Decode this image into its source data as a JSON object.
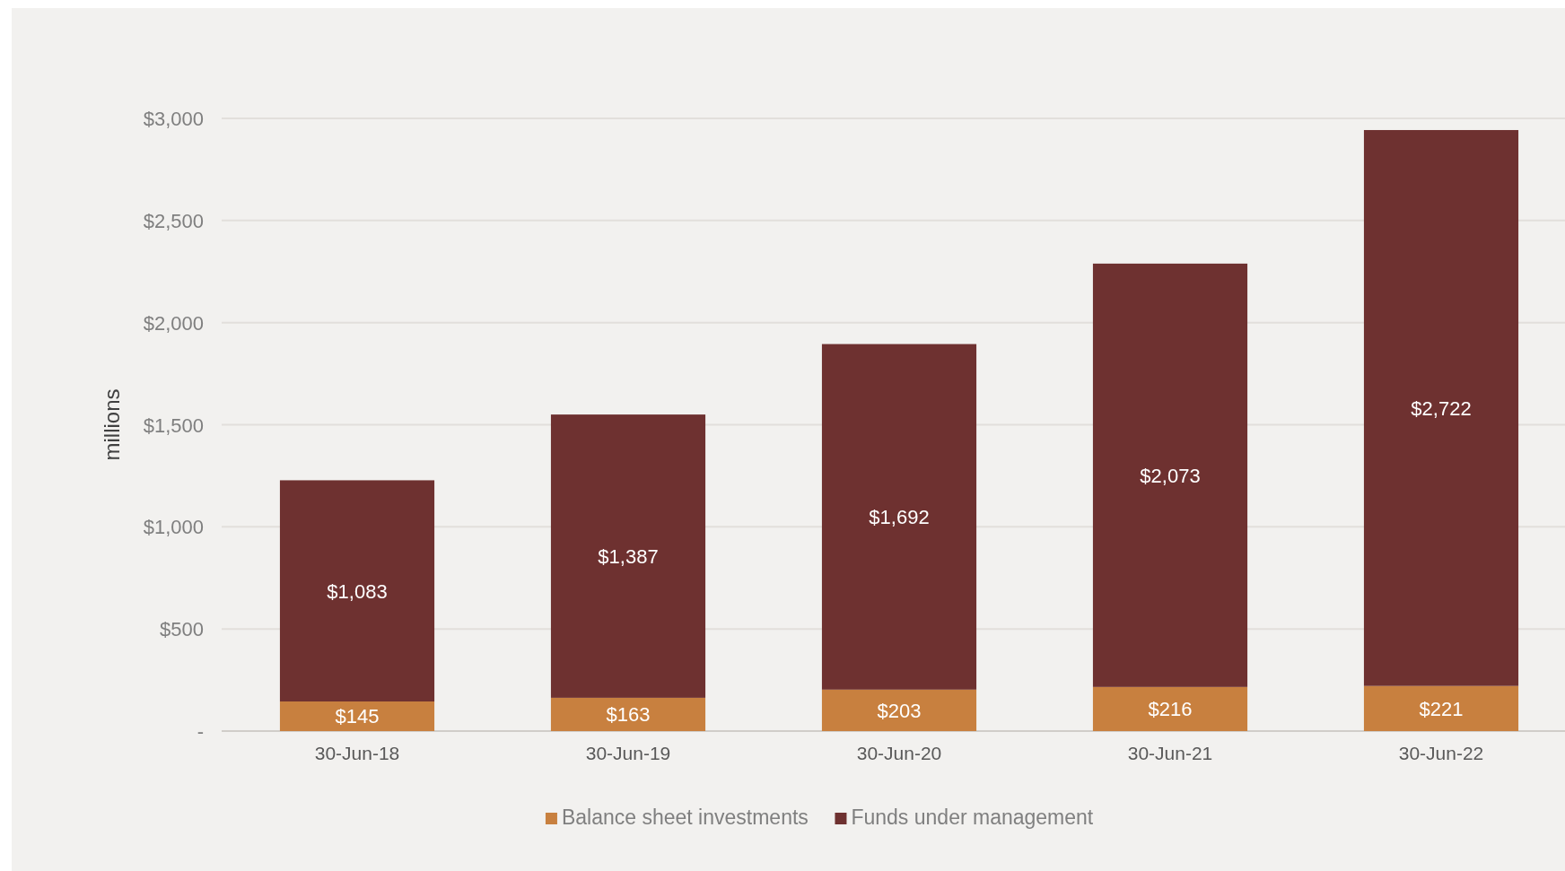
{
  "chart_data": {
    "type": "bar",
    "stacked": true,
    "ylabel": "millions",
    "categories": [
      "30-Jun-18",
      "30-Jun-19",
      "30-Jun-20",
      "30-Jun-21",
      "30-Jun-22"
    ],
    "series": [
      {
        "name": "Balance sheet investments",
        "color": "#c8803f",
        "values": [
          145,
          163,
          203,
          216,
          221
        ],
        "value_labels": [
          "$145",
          "$163",
          "$203",
          "$216",
          "$221"
        ]
      },
      {
        "name": "Funds under management",
        "color": "#6e3130",
        "values": [
          1083,
          1387,
          1692,
          2073,
          2722
        ],
        "value_labels": [
          "$1,083",
          "$1,387",
          "$1,692",
          "$2,073",
          "$2,722"
        ]
      }
    ],
    "ylim": [
      0,
      3000
    ],
    "yticks": [
      {
        "value": 0,
        "label": "-"
      },
      {
        "value": 500,
        "label": "$500"
      },
      {
        "value": 1000,
        "label": "$1,000"
      },
      {
        "value": 1500,
        "label": "$1,500"
      },
      {
        "value": 2000,
        "label": "$2,000"
      },
      {
        "value": 2500,
        "label": "$2,500"
      },
      {
        "value": 3000,
        "label": "$3,000"
      }
    ],
    "grid": "y",
    "legend": "bottom"
  }
}
